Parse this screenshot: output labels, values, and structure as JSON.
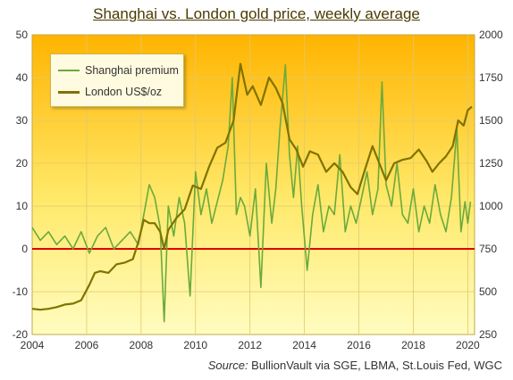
{
  "chart_data": {
    "type": "line",
    "title": "Shanghai vs. London gold price, weekly average",
    "xlim": [
      2004,
      2020.25
    ],
    "xticks": [
      "2004",
      "2006",
      "2008",
      "2010",
      "2012",
      "2014",
      "2016",
      "2018",
      "2020"
    ],
    "left_axis": {
      "ylim": [
        -20,
        50
      ],
      "ticks": [
        "-20",
        "-10",
        "0",
        "10",
        "20",
        "30",
        "40",
        "50"
      ]
    },
    "right_axis": {
      "ylim": [
        250,
        2000
      ],
      "ticks": [
        "250",
        "500",
        "750",
        "1000",
        "1250",
        "1500",
        "1750",
        "2000"
      ]
    },
    "series": [
      {
        "name": "Shanghai premium",
        "axis": "left",
        "color": "#6aaa3c",
        "x": [
          2004.0,
          2004.3,
          2004.6,
          2004.9,
          2005.2,
          2005.5,
          2005.8,
          2006.1,
          2006.4,
          2006.7,
          2007.0,
          2007.3,
          2007.6,
          2007.9,
          2008.1,
          2008.3,
          2008.5,
          2008.7,
          2008.85,
          2009.0,
          2009.2,
          2009.4,
          2009.6,
          2009.8,
          2010.0,
          2010.2,
          2010.4,
          2010.6,
          2010.8,
          2011.0,
          2011.2,
          2011.35,
          2011.5,
          2011.65,
          2011.8,
          2012.0,
          2012.2,
          2012.4,
          2012.6,
          2012.8,
          2012.95,
          2013.1,
          2013.3,
          2013.45,
          2013.6,
          2013.75,
          2013.9,
          2014.1,
          2014.3,
          2014.5,
          2014.7,
          2014.9,
          2015.1,
          2015.3,
          2015.5,
          2015.7,
          2015.9,
          2016.1,
          2016.3,
          2016.5,
          2016.7,
          2016.85,
          2017.0,
          2017.2,
          2017.4,
          2017.6,
          2017.8,
          2018.0,
          2018.2,
          2018.4,
          2018.6,
          2018.8,
          2019.0,
          2019.2,
          2019.4,
          2019.6,
          2019.75,
          2019.9,
          2020.0,
          2020.1
        ],
        "values": [
          5,
          2,
          4,
          1,
          3,
          0,
          4,
          -1,
          3,
          5,
          0,
          2,
          4,
          1,
          8,
          15,
          12,
          5,
          -17,
          10,
          3,
          12,
          6,
          -11,
          18,
          8,
          14,
          6,
          11,
          16,
          24,
          40,
          8,
          12,
          10,
          3,
          14,
          -9,
          20,
          6,
          14,
          28,
          43,
          22,
          12,
          24,
          10,
          -5,
          8,
          15,
          4,
          10,
          8,
          22,
          4,
          10,
          6,
          12,
          18,
          8,
          14,
          39,
          15,
          10,
          20,
          8,
          6,
          14,
          4,
          10,
          6,
          15,
          8,
          4,
          12,
          28,
          4,
          11,
          6,
          11
        ]
      },
      {
        "name": "London US$/oz",
        "axis": "right",
        "color": "#807200",
        "x": [
          2004.0,
          2004.3,
          2004.6,
          2004.9,
          2005.2,
          2005.5,
          2005.8,
          2006.1,
          2006.3,
          2006.5,
          2006.8,
          2007.1,
          2007.4,
          2007.7,
          2007.9,
          2008.1,
          2008.3,
          2008.5,
          2008.7,
          2008.85,
          2009.0,
          2009.3,
          2009.6,
          2009.9,
          2010.2,
          2010.5,
          2010.8,
          2011.1,
          2011.4,
          2011.65,
          2011.9,
          2012.1,
          2012.4,
          2012.7,
          2012.95,
          2013.2,
          2013.45,
          2013.7,
          2013.95,
          2014.2,
          2014.5,
          2014.8,
          2015.1,
          2015.4,
          2015.7,
          2015.95,
          2016.2,
          2016.5,
          2016.75,
          2017.0,
          2017.3,
          2017.6,
          2017.9,
          2018.2,
          2018.5,
          2018.7,
          2018.95,
          2019.2,
          2019.45,
          2019.65,
          2019.85,
          2020.0,
          2020.15
        ],
        "values": [
          400,
          395,
          400,
          410,
          425,
          430,
          450,
          540,
          610,
          620,
          610,
          660,
          670,
          690,
          790,
          920,
          900,
          900,
          850,
          750,
          860,
          930,
          980,
          1120,
          1100,
          1230,
          1340,
          1370,
          1500,
          1830,
          1650,
          1700,
          1590,
          1750,
          1690,
          1600,
          1390,
          1330,
          1230,
          1320,
          1300,
          1200,
          1250,
          1200,
          1110,
          1070,
          1200,
          1350,
          1250,
          1150,
          1250,
          1270,
          1280,
          1330,
          1260,
          1200,
          1250,
          1290,
          1350,
          1500,
          1470,
          1560,
          1580
        ]
      }
    ],
    "reference_line": {
      "axis": "left",
      "y": 0,
      "color": "#e00000"
    },
    "legend_position": "top-left",
    "grid": true
  },
  "source": {
    "label": "Source:",
    "text": " BullionVault via SGE, LBMA, St.Louis Fed, WGC"
  }
}
